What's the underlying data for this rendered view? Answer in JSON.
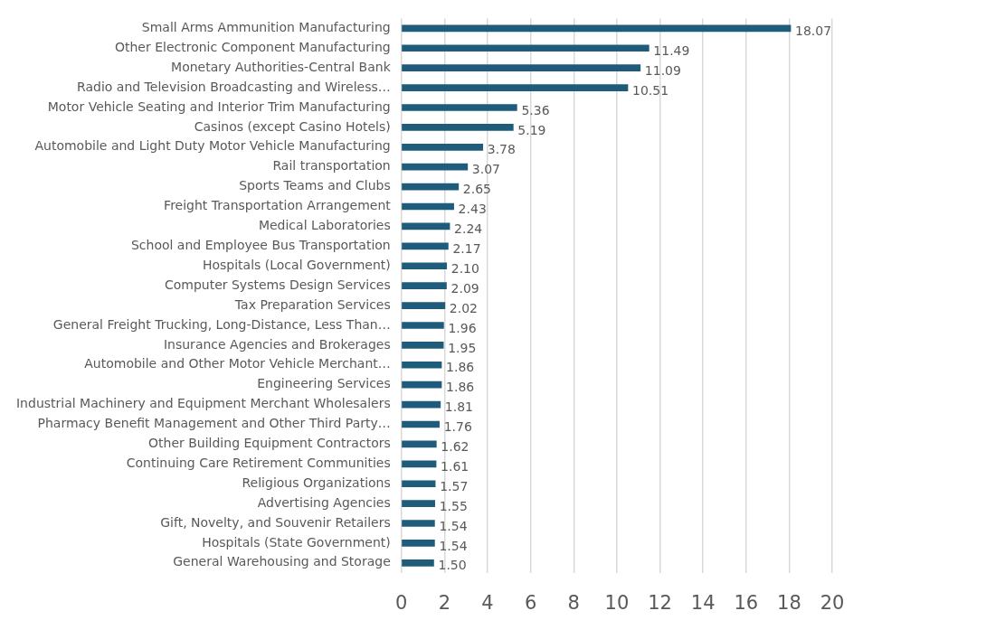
{
  "chart_data": {
    "type": "bar",
    "orientation": "horizontal",
    "categories": [
      "Small Arms Ammunition Manufacturing",
      "Other Electronic Component Manufacturing",
      "Monetary Authorities-Central Bank",
      "Radio and Television Broadcasting and Wireless…",
      "Motor Vehicle Seating and Interior Trim Manufacturing",
      "Casinos (except Casino Hotels)",
      "Automobile and Light Duty Motor Vehicle Manufacturing",
      "Rail transportation",
      "Sports Teams and Clubs",
      "Freight Transportation Arrangement",
      "Medical Laboratories",
      "School and Employee Bus Transportation",
      "Hospitals (Local Government)",
      "Computer Systems Design Services",
      "Tax Preparation Services",
      "General Freight Trucking, Long-Distance, Less Than…",
      "Insurance Agencies and Brokerages",
      "Automobile and Other Motor Vehicle Merchant…",
      "Engineering Services",
      "Industrial Machinery and Equipment Merchant Wholesalers",
      "Pharmacy Benefit Management and Other Third Party…",
      "Other Building Equipment Contractors",
      "Continuing Care Retirement Communities",
      "Religious Organizations",
      "Advertising Agencies",
      "Gift, Novelty, and Souvenir Retailers",
      "Hospitals (State Government)",
      "General Warehousing and Storage"
    ],
    "values": [
      18.07,
      11.49,
      11.09,
      10.51,
      5.36,
      5.19,
      3.78,
      3.07,
      2.65,
      2.43,
      2.24,
      2.17,
      2.1,
      2.09,
      2.02,
      1.96,
      1.95,
      1.86,
      1.86,
      1.81,
      1.76,
      1.62,
      1.61,
      1.57,
      1.55,
      1.54,
      1.54,
      1.5
    ],
    "value_labels": [
      "18.07",
      "11.49",
      "11.09",
      "10.51",
      "5.36",
      "5.19",
      "3.78",
      "3.07",
      "2.65",
      "2.43",
      "2.24",
      "2.17",
      "2.10",
      "2.09",
      "2.02",
      "1.96",
      "1.95",
      "1.86",
      "1.86",
      "1.81",
      "1.76",
      "1.62",
      "1.61",
      "1.57",
      "1.55",
      "1.54",
      "1.54",
      "1.50"
    ],
    "color": "#1f5c7b",
    "xlim": [
      0,
      20
    ],
    "xticks": [
      0,
      2,
      4,
      6,
      8,
      10,
      12,
      14,
      16,
      18,
      20
    ],
    "grid": "x",
    "legend": false
  }
}
